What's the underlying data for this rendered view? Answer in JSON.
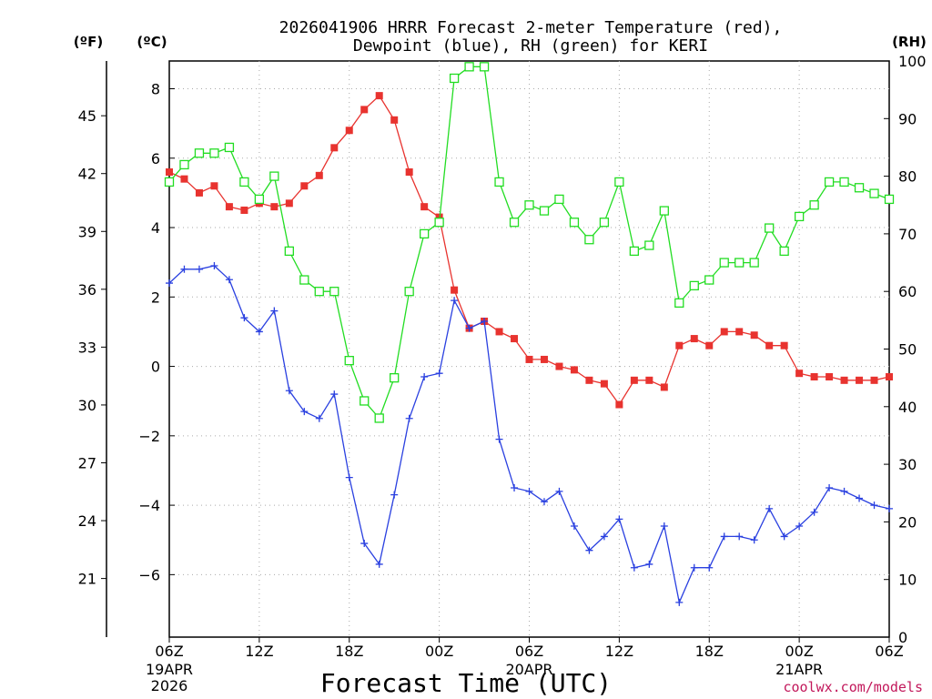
{
  "chart_data": {
    "type": "line",
    "title_line1": "2026041906 HRRR Forecast 2-meter Temperature (red),",
    "title_line2": "Dewpoint (blue), RH (green) for KERI",
    "xlabel": "Forecast Time (UTC)",
    "credit": "coolwx.com/models",
    "units": {
      "fahrenheit": "(ºF)",
      "celsius": "(ºC)",
      "rh": "(RH)"
    },
    "celsius_axis": {
      "ylim": [
        -7.8,
        8.8
      ],
      "ticks": [
        8,
        6,
        4,
        2,
        0,
        -2,
        -4,
        -6
      ],
      "tick_labels": [
        "8",
        "6",
        "4",
        "2",
        "0",
        "−2",
        "−4",
        "−6"
      ]
    },
    "fahrenheit_axis": {
      "ticks": [
        45,
        42,
        39,
        36,
        33,
        30,
        27,
        24,
        21
      ],
      "tick_labels": [
        "45",
        "42",
        "39",
        "36",
        "33",
        "30",
        "27",
        "24",
        "21"
      ]
    },
    "rh_axis": {
      "ylim": [
        0,
        100
      ],
      "ticks": [
        0,
        10,
        20,
        30,
        40,
        50,
        60,
        70,
        80,
        90,
        100
      ],
      "tick_labels": [
        "0",
        "10",
        "20",
        "30",
        "40",
        "50",
        "60",
        "70",
        "80",
        "90",
        "100"
      ]
    },
    "x": {
      "range_hours": [
        0,
        48
      ],
      "ticks": [
        0,
        6,
        12,
        18,
        24,
        30,
        36,
        42,
        48
      ],
      "tick_labels": [
        "06Z",
        "12Z",
        "18Z",
        "00Z",
        "06Z",
        "12Z",
        "18Z",
        "00Z",
        "06Z"
      ],
      "date_labels": [
        {
          "hour": 0,
          "lines": [
            "19APR",
            "2026"
          ]
        },
        {
          "hour": 24,
          "lines": [
            "20APR"
          ]
        },
        {
          "hour": 42,
          "lines": [
            "21APR"
          ]
        }
      ]
    },
    "series": [
      {
        "name": "Temperature",
        "color": "#e8332f",
        "marker": "filled-square",
        "values": [
          5.6,
          5.4,
          5.0,
          5.2,
          4.6,
          4.5,
          4.7,
          4.6,
          4.7,
          5.2,
          5.5,
          6.3,
          6.8,
          7.4,
          7.8,
          7.1,
          5.6,
          4.6,
          4.3,
          2.2,
          1.1,
          1.3,
          1.0,
          0.8,
          0.2,
          0.2,
          0.0,
          -0.1,
          -0.4,
          -0.5,
          -1.1,
          -0.4,
          -0.4,
          -0.6,
          0.6,
          0.8,
          0.6,
          1.0,
          1.0,
          0.9,
          0.6,
          0.6,
          -0.2,
          -0.3,
          -0.3,
          -0.4,
          -0.4,
          -0.4,
          -0.3
        ]
      },
      {
        "name": "Dewpoint",
        "color": "#2a40e0",
        "marker": "plus",
        "values": [
          2.4,
          2.8,
          2.8,
          2.9,
          2.5,
          1.4,
          1.0,
          1.6,
          -0.7,
          -1.3,
          -1.5,
          -0.8,
          -3.2,
          -5.1,
          -5.7,
          -3.7,
          -1.5,
          -0.3,
          -0.2,
          1.9,
          1.1,
          1.3,
          -2.1,
          -3.5,
          -3.6,
          -3.9,
          -3.6,
          -4.6,
          -5.3,
          -4.9,
          -4.4,
          -5.8,
          -5.7,
          -4.6,
          -6.8,
          -5.8,
          -5.8,
          -4.9,
          -4.9,
          -5.0,
          -4.1,
          -4.9,
          -4.6,
          -4.2,
          -3.5,
          -3.6,
          -3.8,
          -4.0,
          -4.1
        ]
      },
      {
        "name": "RH",
        "color": "#22dd22",
        "marker": "open-square",
        "values": [
          79,
          82,
          84,
          84,
          85,
          79,
          76,
          80,
          67,
          62,
          60,
          60,
          48,
          41,
          38,
          45,
          60,
          70,
          72,
          97,
          99,
          99,
          79,
          72,
          75,
          74,
          76,
          72,
          69,
          72,
          79,
          67,
          68,
          74,
          58,
          61,
          62,
          65,
          65,
          65,
          71,
          67,
          73,
          75,
          79,
          79,
          78,
          77,
          76
        ]
      }
    ]
  }
}
